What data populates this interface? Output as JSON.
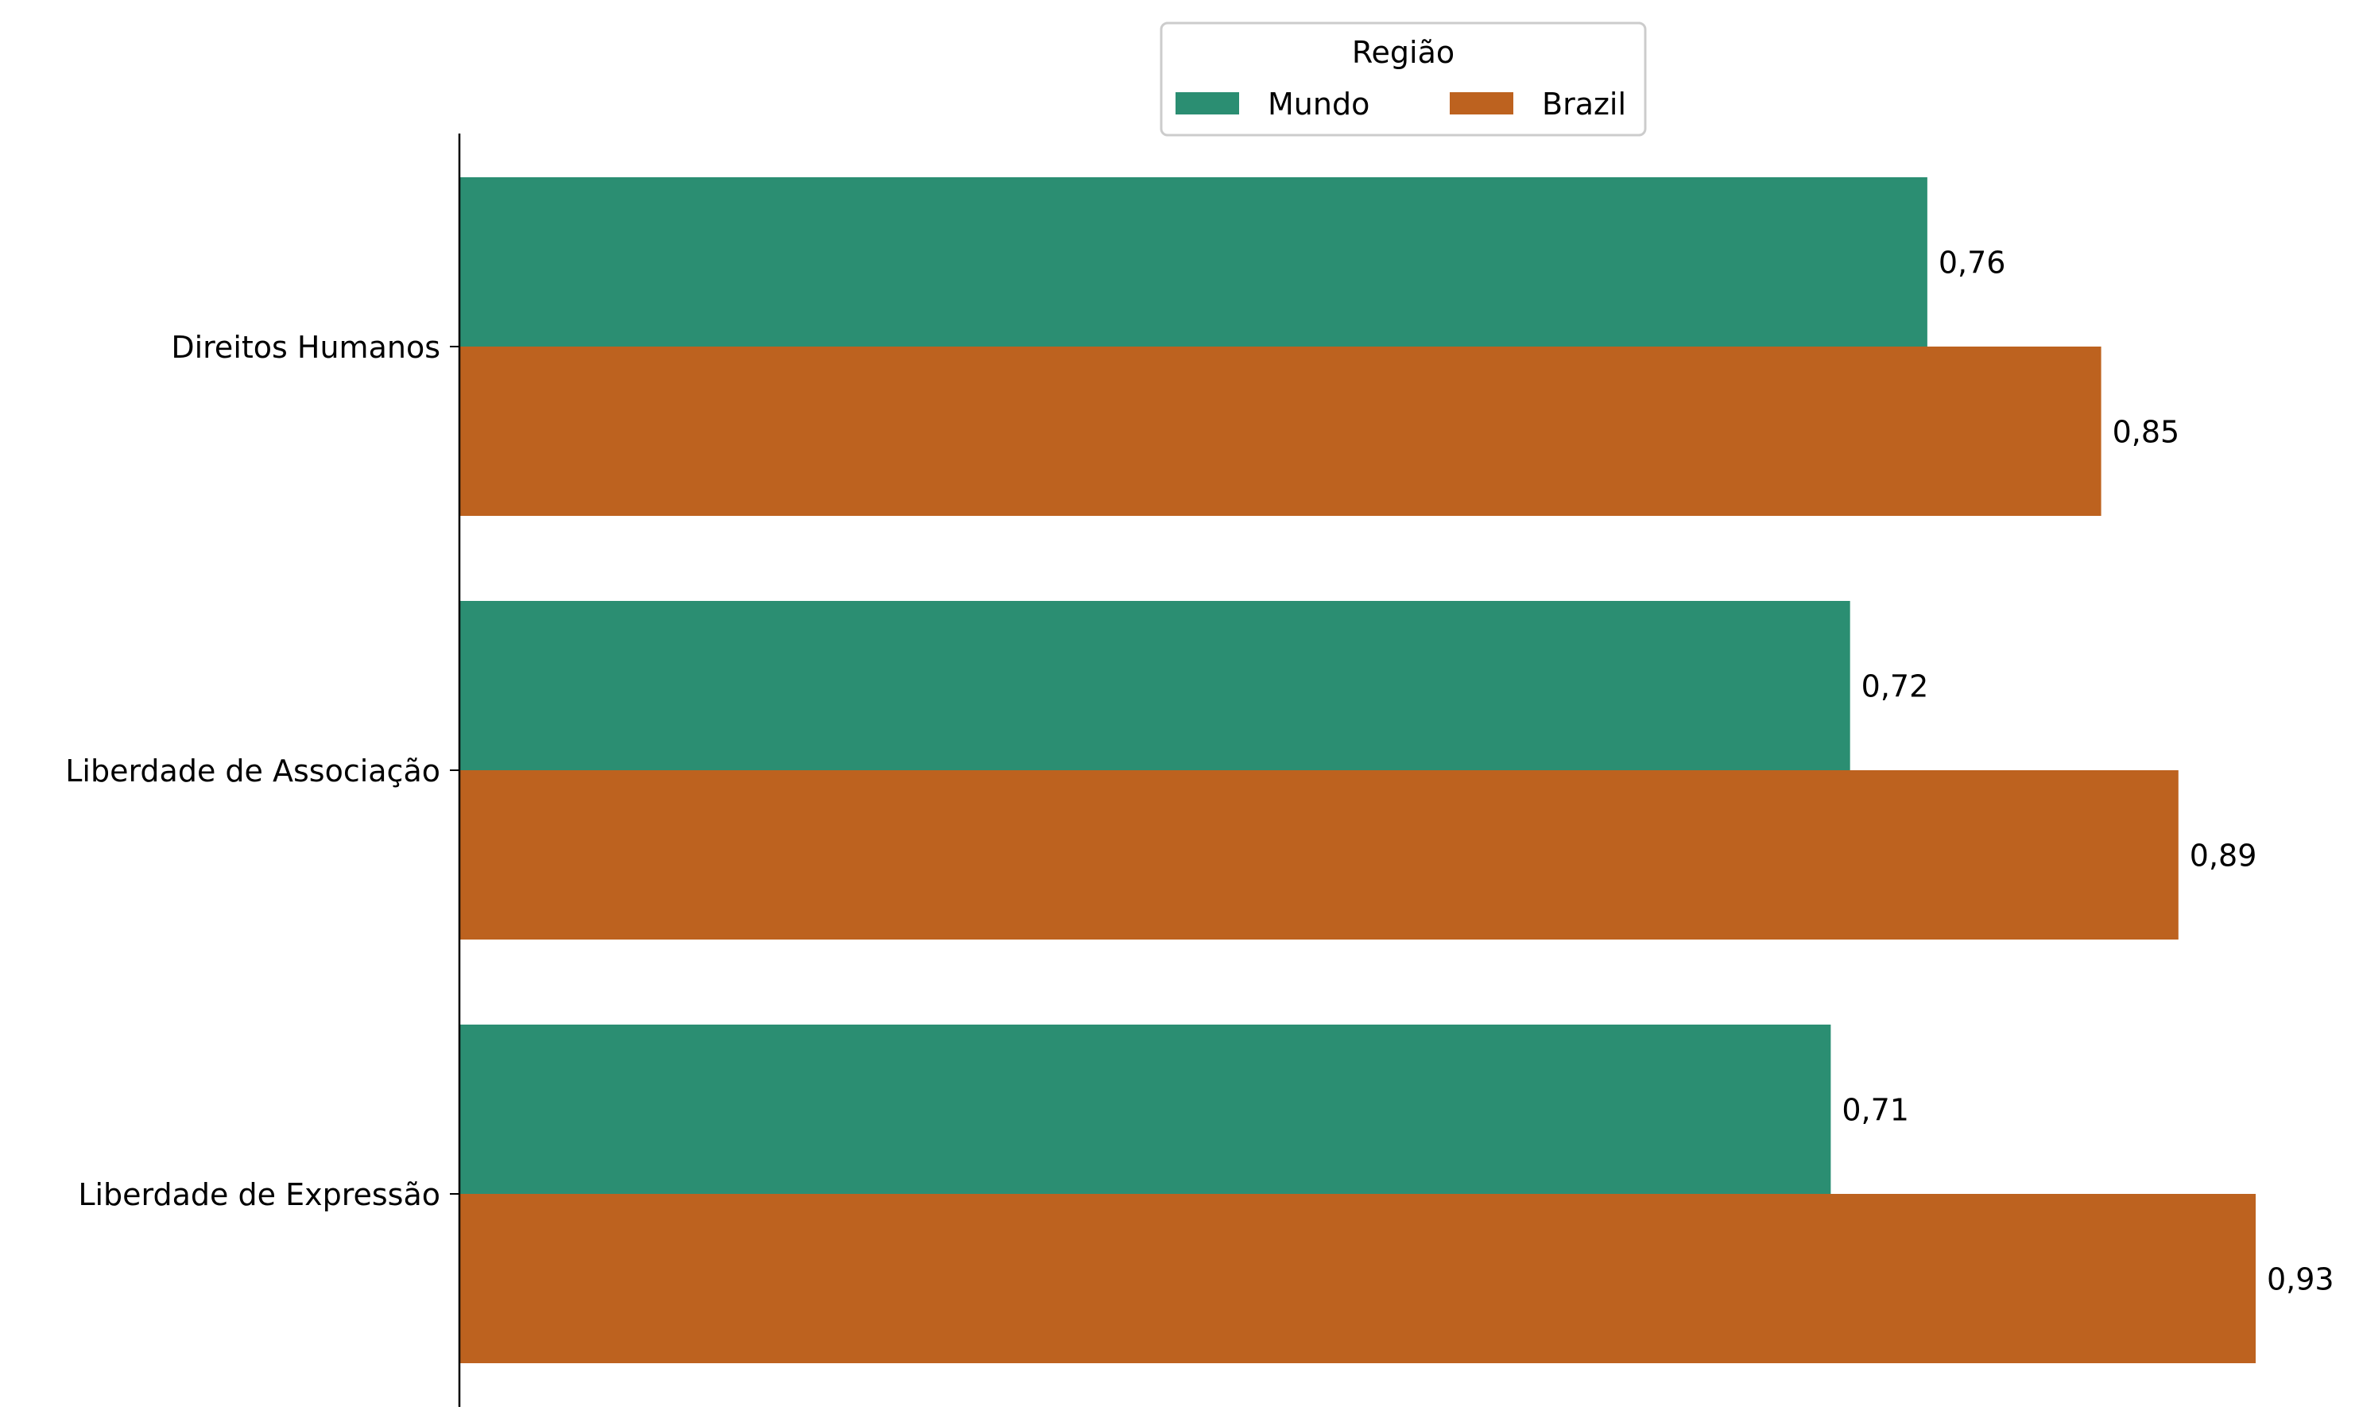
{
  "chart_data": {
    "type": "bar",
    "orientation": "horizontal",
    "categories": [
      "Direitos Humanos",
      "Liberdade de Associação",
      "Liberdade de Expressão"
    ],
    "series": [
      {
        "name": "Mundo",
        "values": [
          0.76,
          0.72,
          0.71
        ],
        "labels": [
          "0,76",
          "0,72",
          "0,71"
        ],
        "color": "#2b8e72"
      },
      {
        "name": "Brazil",
        "values": [
          0.85,
          0.89,
          0.93
        ],
        "labels": [
          "0,85",
          "0,89",
          "0,93"
        ],
        "color": "#bd621f"
      }
    ],
    "title": "",
    "xlabel": "",
    "ylabel": "",
    "xlim": [
      0,
      0.93
    ],
    "legend": {
      "title": "Região",
      "placement": "top-center",
      "columns": 2
    },
    "grid": false,
    "x_axis_visible": false
  }
}
